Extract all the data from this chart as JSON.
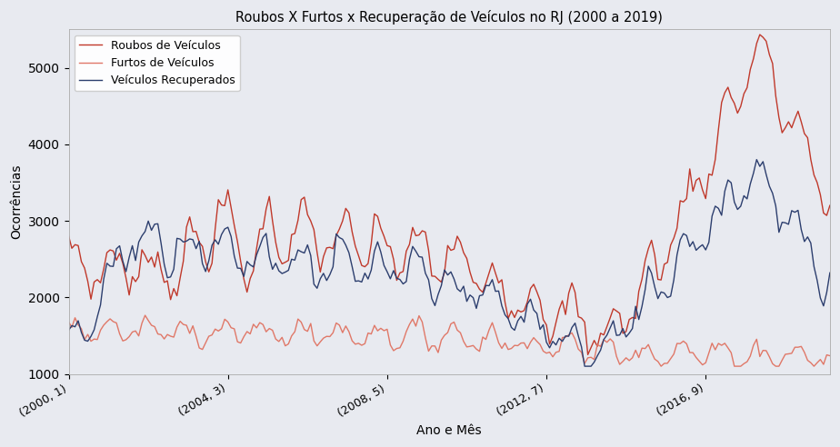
{
  "title": "Roubos X Furtos x Recuperação de Veículos no RJ (2000 a 2019)",
  "xlabel": "Ano e Mês",
  "ylabel": "Ocorrências",
  "background_color": "#e8eaf0",
  "fig_facecolor": "#e8eaf0",
  "legend_labels": [
    "Roubos de Veículos",
    "Furtos de Veículos",
    "Veículos Recuperados"
  ],
  "line_colors": [
    "#c0392b",
    "#e07868",
    "#2c3e6e"
  ],
  "ylim": [
    1000,
    5500
  ],
  "yticks": [
    1000,
    2000,
    3000,
    4000,
    5000
  ],
  "xtick_labels": [
    "(2000, 1)",
    "(2004, 3)",
    "(2008, 5)",
    "(2012, 7)",
    "(2016, 9)"
  ],
  "xtick_positions": [
    0,
    50,
    100,
    150,
    200
  ]
}
